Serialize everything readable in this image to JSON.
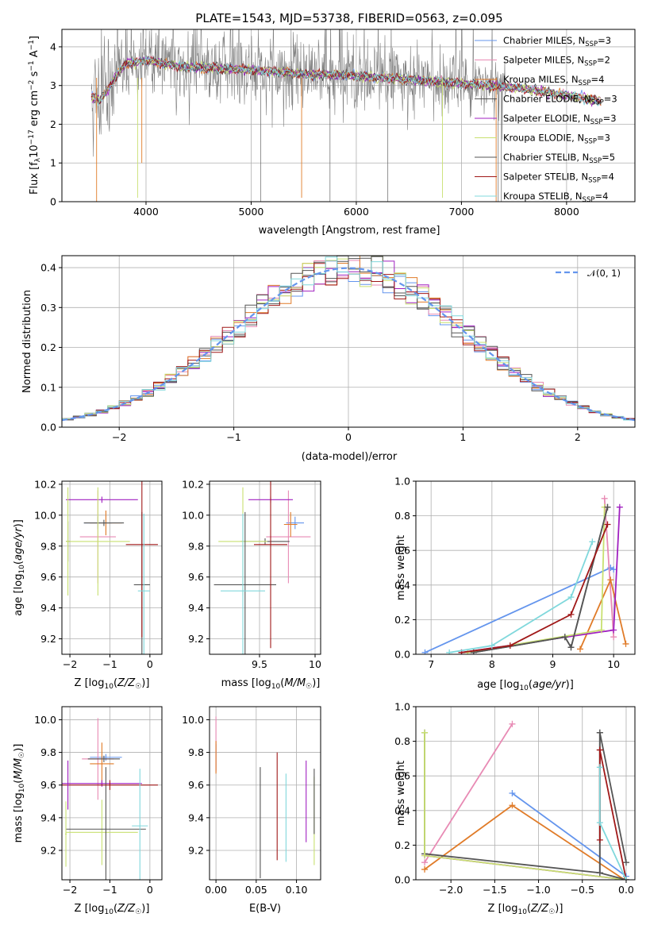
{
  "title": "PLATE=1543, MJD=53738, FIBERID=0563, z=0.095",
  "colors": {
    "Chabrier MILES": "#6495ED",
    "Salpeter MILES": "#E88AB4",
    "Kroupa MILES": "#E07B28",
    "Chabrier ELODIE": "#555555",
    "Salpeter ELODIE": "#A020C0",
    "Kroupa ELODIE": "#C8E070",
    "Chabrier STELIB": "#555555",
    "Salpeter STELIB": "#A01818",
    "Kroupa STELIB": "#80D8DC",
    "data": "#808080",
    "normal": "#6495ED"
  },
  "chart_data": [
    {
      "panel": "spectrum",
      "type": "line",
      "xlabel": "wavelength [Angstrom, rest frame]",
      "ylabel": "Flux [f_λ10^-17 erg cm^-2 s^-1 A^-1]",
      "ylabel_parts": {
        "a": "Flux [f",
        "b": "λ",
        "c": "10",
        "d": "−17",
        "e": " erg cm",
        "f": "−2",
        "g": " s",
        "h": "−1",
        "i": " A",
        "j": "−1",
        "k": "]"
      },
      "xlim": [
        3200,
        8650
      ],
      "ylim": [
        0,
        4.45
      ],
      "xticks": [
        4000,
        5000,
        6000,
        7000,
        8000
      ],
      "yticks": [
        0,
        1,
        2,
        3,
        4
      ],
      "model_shape": [
        [
          3480,
          2.7
        ],
        [
          3560,
          2.6
        ],
        [
          3650,
          2.95
        ],
        [
          3720,
          3.25
        ],
        [
          3800,
          3.55
        ],
        [
          3900,
          3.6
        ],
        [
          4000,
          3.65
        ],
        [
          4100,
          3.6
        ],
        [
          4300,
          3.5
        ],
        [
          4600,
          3.45
        ],
        [
          5000,
          3.4
        ],
        [
          5500,
          3.3
        ],
        [
          6000,
          3.25
        ],
        [
          6500,
          3.15
        ],
        [
          7000,
          3.05
        ],
        [
          7500,
          2.95
        ],
        [
          8000,
          2.75
        ],
        [
          8300,
          2.6
        ]
      ],
      "legend": [
        {
          "base": "Chabrier MILES, N",
          "sub": "SSP",
          "n": "=3",
          "style": "line"
        },
        {
          "base": "Salpeter MILES, N",
          "sub": "SSP",
          "n": "=2",
          "style": "line"
        },
        {
          "base": "Kroupa MILES, N",
          "sub": "SSP",
          "n": "=4",
          "style": "line"
        },
        {
          "base": "Chabrier ELODIE, N",
          "sub": "SSP",
          "n": "=3",
          "style": "line"
        },
        {
          "base": "Salpeter ELODIE, N",
          "sub": "SSP",
          "n": "=3",
          "style": "line"
        },
        {
          "base": "Kroupa ELODIE, N",
          "sub": "SSP",
          "n": "=3",
          "style": "line"
        },
        {
          "base": "Chabrier STELIB, N",
          "sub": "SSP",
          "n": "=5",
          "style": "line"
        },
        {
          "base": "Salpeter STELIB, N",
          "sub": "SSP",
          "n": "=4",
          "style": "line"
        },
        {
          "base": "Kroupa STELIB, N",
          "sub": "SSP",
          "n": "=4",
          "style": "line"
        }
      ],
      "legend_loc": "right"
    },
    {
      "panel": "residuals",
      "type": "histogram",
      "xlabel": "(data-model)/error",
      "ylabel": "Normed distribution",
      "xlim": [
        -2.5,
        2.5
      ],
      "ylim": [
        0,
        0.43
      ],
      "xticks": [
        -2,
        -1,
        0,
        1,
        2
      ],
      "yticks": [
        0.0,
        0.1,
        0.2,
        0.3,
        0.4
      ],
      "bin_width": 0.1,
      "legend_label": "𝒩(0, 1)",
      "legend_loc": "top-right"
    },
    {
      "panel": "age-vs-Z",
      "type": "scatter",
      "xlabel": "Z [log10(Z/Z☉)]",
      "ylabel": "age [log10(age/yr)]",
      "xlim": [
        -2.2,
        0.3
      ],
      "ylim": [
        9.1,
        10.22
      ],
      "xticks": [
        -2,
        -1,
        0
      ],
      "yticks": [
        9.2,
        9.4,
        9.6,
        9.8,
        10.0,
        10.2
      ],
      "points": [
        {
          "c": "Chabrier MILES",
          "x": -1.3,
          "y": 9.95,
          "xe": 0.35,
          "ye": 0.04
        },
        {
          "c": "Salpeter MILES",
          "x": -1.3,
          "y": 9.86,
          "xe": 0.45,
          "ye": 0.3
        },
        {
          "c": "Kroupa MILES",
          "x": -1.1,
          "y": 9.95,
          "xe": 0.4,
          "ye": 0.08
        },
        {
          "c": "Chabrier ELODIE",
          "x": -1.15,
          "y": 9.95,
          "xe": 0.5,
          "ye": 0.02
        },
        {
          "c": "Salpeter ELODIE",
          "x": -1.2,
          "y": 10.1,
          "xe": 0.9,
          "ye": 0.02
        },
        {
          "c": "Kroupa ELODIE",
          "x": -1.3,
          "y": 9.83,
          "xe": 0.8,
          "ye": 0.35
        },
        {
          "c": "Chabrier STELIB",
          "x": -0.2,
          "y": 9.55,
          "xe": 0.2,
          "ye": 0.47
        },
        {
          "c": "Salpeter STELIB",
          "x": -0.2,
          "y": 9.81,
          "xe": 0.4,
          "ye": 0.6
        },
        {
          "c": "Kroupa STELIB",
          "x": -0.15,
          "y": 9.51,
          "xe": 0.15,
          "ye": 0.5
        },
        {
          "c": "Chabrier ELODIE",
          "x": -2.05,
          "y": 9.83,
          "xe": 0.05,
          "ye": 0.13
        },
        {
          "c": "Kroupa ELODIE",
          "x": -2.05,
          "y": 9.83,
          "xe": 0.05,
          "ye": 0.35
        }
      ]
    },
    {
      "panel": "age-vs-mass",
      "type": "scatter",
      "xlabel": "mass [log10(M/M☉)]",
      "ylabel": "",
      "xlim": [
        9.05,
        10.05
      ],
      "ylim": [
        9.1,
        10.22
      ],
      "xticks": [
        9.5,
        10.0
      ],
      "yticks": [
        9.2,
        9.4,
        9.6,
        9.8,
        10.0,
        10.2
      ],
      "points": [
        {
          "c": "Chabrier MILES",
          "x": 9.82,
          "y": 9.95,
          "xe": 0.08,
          "ye": 0.04
        },
        {
          "c": "Salpeter MILES",
          "x": 9.76,
          "y": 9.86,
          "xe": 0.2,
          "ye": 0.3
        },
        {
          "c": "Kroupa MILES",
          "x": 9.78,
          "y": 9.94,
          "xe": 0.06,
          "ye": 0.08
        },
        {
          "c": "Chabrier ELODIE",
          "x": 9.55,
          "y": 9.83,
          "xe": 0.22,
          "ye": 0.02
        },
        {
          "c": "Salpeter ELODIE",
          "x": 9.6,
          "y": 10.1,
          "xe": 0.2,
          "ye": 0.02
        },
        {
          "c": "Kroupa ELODIE",
          "x": 9.35,
          "y": 9.83,
          "xe": 0.22,
          "ye": 0.35
        },
        {
          "c": "Chabrier STELIB",
          "x": 9.37,
          "y": 9.55,
          "xe": 0.28,
          "ye": 0.47
        },
        {
          "c": "Salpeter STELIB",
          "x": 9.6,
          "y": 9.81,
          "xe": 0.15,
          "ye": 0.67
        },
        {
          "c": "Kroupa STELIB",
          "x": 9.35,
          "y": 9.51,
          "xe": 0.2,
          "ye": 0.5
        }
      ]
    },
    {
      "panel": "weight-vs-age",
      "type": "line",
      "xlabel": "age [log10(age/yr)]",
      "ylabel": "mass weight",
      "xlim": [
        6.75,
        10.35
      ],
      "ylim": [
        0,
        1.0
      ],
      "xticks": [
        7,
        8,
        9,
        10
      ],
      "yticks": [
        0.0,
        0.2,
        0.4,
        0.6,
        0.8,
        1.0
      ],
      "series": [
        {
          "c": "Chabrier MILES",
          "x": [
            6.9,
            9.95,
            10.0
          ],
          "y": [
            0.01,
            0.5,
            0.49
          ]
        },
        {
          "c": "Salpeter MILES",
          "x": [
            9.85,
            10.0
          ],
          "y": [
            0.9,
            0.1
          ]
        },
        {
          "c": "Kroupa MILES",
          "x": [
            9.45,
            9.95,
            10.2
          ],
          "y": [
            0.03,
            0.43,
            0.06
          ]
        },
        {
          "c": "Chabrier ELODIE",
          "x": [
            7.7,
            9.2,
            9.3,
            9.9
          ],
          "y": [
            0.01,
            0.1,
            0.04,
            0.85
          ]
        },
        {
          "c": "Salpeter ELODIE",
          "x": [
            7.5,
            10.0,
            10.1
          ],
          "y": [
            0.01,
            0.14,
            0.85
          ]
        },
        {
          "c": "Kroupa ELODIE",
          "x": [
            7.6,
            9.8,
            9.85
          ],
          "y": [
            0.01,
            0.14,
            0.85
          ]
        },
        {
          "c": "Chabrier STELIB",
          "x": [
            7.7,
            9.2,
            9.3,
            9.9
          ],
          "y": [
            0.01,
            0.1,
            0.04,
            0.85
          ]
        },
        {
          "c": "Salpeter STELIB",
          "x": [
            7.5,
            8.3,
            9.3,
            9.9
          ],
          "y": [
            0.01,
            0.05,
            0.23,
            0.75
          ]
        },
        {
          "c": "Kroupa STELIB",
          "x": [
            7.3,
            8.0,
            9.3,
            9.65
          ],
          "y": [
            0.01,
            0.05,
            0.33,
            0.65
          ]
        }
      ]
    },
    {
      "panel": "mass-vs-Z",
      "type": "scatter",
      "xlabel": "Z [log10(Z/Z☉)]",
      "ylabel": "mass [log10(M/M☉)]",
      "xlim": [
        -2.2,
        0.3
      ],
      "ylim": [
        9.02,
        10.08
      ],
      "xticks": [
        -2,
        -1,
        0
      ],
      "yticks": [
        9.2,
        9.4,
        9.6,
        9.8,
        10.0
      ],
      "points": [
        {
          "c": "Chabrier MILES",
          "x": -1.1,
          "y": 9.77,
          "xe": 0.4,
          "ye": 0.02
        },
        {
          "c": "Salpeter MILES",
          "x": -1.3,
          "y": 9.76,
          "xe": 0.4,
          "ye": 0.25
        },
        {
          "c": "Kroupa MILES",
          "x": -1.2,
          "y": 9.73,
          "xe": 0.3,
          "ye": 0.13
        },
        {
          "c": "Chabrier ELODIE",
          "x": -1.15,
          "y": 9.76,
          "xe": 0.4,
          "ye": 0.02
        },
        {
          "c": "Salpeter ELODIE",
          "x": -1.2,
          "y": 9.61,
          "xe": 1.0,
          "ye": 0.02
        },
        {
          "c": "Kroupa ELODIE",
          "x": -1.2,
          "y": 9.31,
          "xe": 0.9,
          "ye": 0.2
        },
        {
          "c": "Chabrier STELIB",
          "x": -1.1,
          "y": 9.33,
          "xe": 1.0,
          "ye": 0.38
        },
        {
          "c": "Salpeter STELIB",
          "x": -1.0,
          "y": 9.6,
          "xe": 1.2,
          "ye": 0.03
        },
        {
          "c": "Kroupa STELIB",
          "x": -0.25,
          "y": 9.35,
          "xe": 0.2,
          "ye": 0.35
        },
        {
          "c": "Salpeter ELODIE",
          "x": -2.05,
          "y": 9.6,
          "xe": 0.02,
          "ye": 0.15
        },
        {
          "c": "Kroupa ELODIE",
          "x": -2.1,
          "y": 9.3,
          "xe": 0.02,
          "ye": 0.2
        }
      ]
    },
    {
      "panel": "mass-vs-ebv",
      "type": "scatter",
      "xlabel": "E(B-V)",
      "ylabel": "",
      "xlim": [
        -0.008,
        0.13
      ],
      "ylim": [
        9.02,
        10.08
      ],
      "xticks": [
        0.0,
        0.05,
        0.1
      ],
      "xtick_labels": [
        "0.00",
        "0.05",
        "0.10"
      ],
      "yticks": [
        9.2,
        9.4,
        9.6,
        9.8,
        10.0
      ],
      "points": [
        {
          "c": "Chabrier MILES",
          "x": 0.0,
          "y": 9.77,
          "xe": 0.0,
          "ye": 0.08
        },
        {
          "c": "Salpeter MILES",
          "x": 0.0,
          "y": 9.85,
          "xe": 0.0,
          "ye": 0.17
        },
        {
          "c": "Kroupa MILES",
          "x": 0.0,
          "y": 9.77,
          "xe": 0.0,
          "ye": 0.1
        },
        {
          "c": "Chabrier ELODIE",
          "x": 0.055,
          "y": 9.37,
          "xe": 0.0,
          "ye": 0.34
        },
        {
          "c": "Salpeter ELODIE",
          "x": 0.112,
          "y": 9.5,
          "xe": 0.0,
          "ye": 0.25
        },
        {
          "c": "Kroupa ELODIE",
          "x": 0.122,
          "y": 9.38,
          "xe": 0.0,
          "ye": 0.27
        },
        {
          "c": "Chabrier STELIB",
          "x": 0.122,
          "y": 9.5,
          "xe": 0.0,
          "ye": 0.2
        },
        {
          "c": "Salpeter STELIB",
          "x": 0.076,
          "y": 9.47,
          "xe": 0.0,
          "ye": 0.33
        },
        {
          "c": "Kroupa STELIB",
          "x": 0.087,
          "y": 9.4,
          "xe": 0.0,
          "ye": 0.27
        }
      ]
    },
    {
      "panel": "weight-vs-Z",
      "type": "line",
      "xlabel": "Z [log10(Z/Z☉)]",
      "ylabel": "mass weight",
      "xlim": [
        -2.4,
        0.1
      ],
      "ylim": [
        0,
        1.0
      ],
      "xticks": [
        -2.0,
        -1.5,
        -1.0,
        -0.5,
        0.0
      ],
      "xtick_labels": [
        "−2.0",
        "−1.5",
        "−1.0",
        "−0.5",
        "0.0"
      ],
      "yticks": [
        0.0,
        0.2,
        0.4,
        0.6,
        0.8,
        1.0
      ],
      "series": [
        {
          "c": "Chabrier MILES",
          "x": [
            -1.3,
            0.0,
            -0.02
          ],
          "y": [
            0.5,
            0.02,
            0.0
          ]
        },
        {
          "c": "Salpeter MILES",
          "x": [
            -2.3,
            -1.3
          ],
          "y": [
            0.1,
            0.9
          ]
        },
        {
          "c": "Kroupa MILES",
          "x": [
            -2.3,
            -1.3,
            -0.02
          ],
          "y": [
            0.06,
            0.43,
            0.0
          ]
        },
        {
          "c": "Chabrier ELODIE",
          "x": [
            -2.3,
            -2.3,
            -0.3,
            -0.3,
            0.0
          ],
          "y": [
            0.85,
            0.15,
            0.04,
            0.85,
            0.1
          ]
        },
        {
          "c": "Salpeter ELODIE",
          "x": [
            -2.3,
            0.0
          ],
          "y": [
            0.14,
            0.0
          ]
        },
        {
          "c": "Kroupa ELODIE",
          "x": [
            -2.3,
            -2.3,
            0.0
          ],
          "y": [
            0.85,
            0.14,
            0.0
          ]
        },
        {
          "c": "Chabrier STELIB",
          "x": [
            -0.3,
            -0.3,
            0.0
          ],
          "y": [
            0.85,
            0.04,
            0.0
          ]
        },
        {
          "c": "Salpeter STELIB",
          "x": [
            -0.3,
            -0.3,
            -0.3,
            0.0
          ],
          "y": [
            0.75,
            0.23,
            0.75,
            0.0
          ]
        },
        {
          "c": "Kroupa STELIB",
          "x": [
            -0.3,
            -0.3,
            0.0
          ],
          "y": [
            0.65,
            0.33,
            0.0
          ]
        }
      ]
    }
  ]
}
